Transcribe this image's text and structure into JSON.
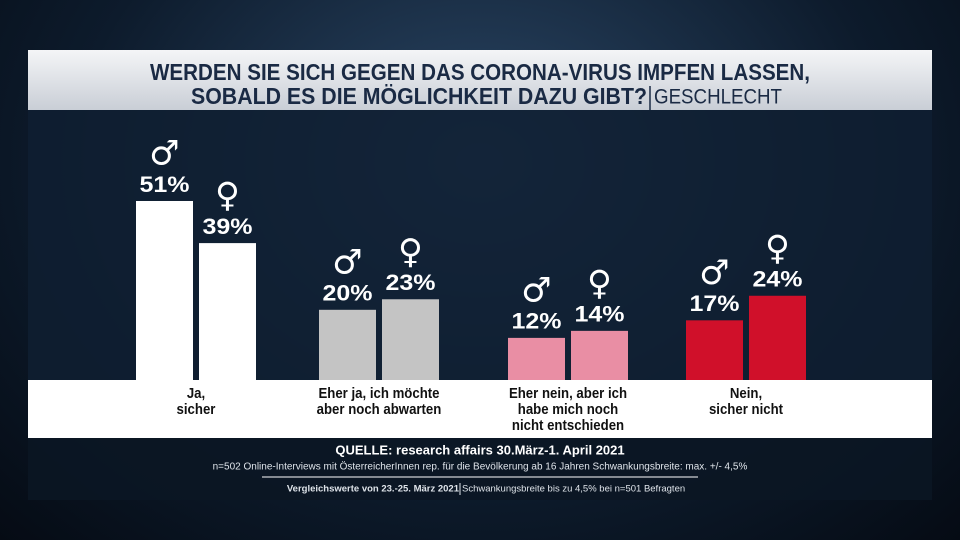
{
  "chart_data": {
    "type": "bar",
    "title": "WERDEN SIE SICH GEGEN DAS CORONA-VIRUS IMPFEN LASSEN,",
    "subtitle": "SOBALD ES DIE MÖGLICHKEIT DAZU GIBT?",
    "subtitle_tag": "GESCHLECHT",
    "categories": [
      "Ja,\nsicher",
      "Eher ja, ich möchte\naber noch abwarten",
      "Eher nein, aber ich\nhabe mich noch\nnicht entschieden",
      "Nein,\nsicher nicht"
    ],
    "colors": [
      "#ffffff",
      "#c4c4c4",
      "#e98ea4",
      "#d0102a"
    ],
    "series": [
      {
        "name": "♂",
        "values": [
          51,
          20,
          12,
          17
        ],
        "value_labels": [
          "51%",
          "20%",
          "12%",
          "17%"
        ]
      },
      {
        "name": "♀",
        "values": [
          39,
          23,
          14,
          24
        ],
        "value_labels": [
          "39%",
          "23%",
          "14%",
          "24%"
        ]
      }
    ],
    "source": "QUELLE: research affairs 30.März-1. April 2021",
    "note": "n=502 Online-Interviews mit ÖsterreicherInnen rep. für die Bevölkerung ab 16 Jahren  Schwankungsbreite: max. +/- 4,5%",
    "comparison": "Vergleichswerte von 23.-25. März 2021",
    "comparison_note": "Schwankungsbreite bis zu 4,5% bei n=501 Befragten"
  }
}
